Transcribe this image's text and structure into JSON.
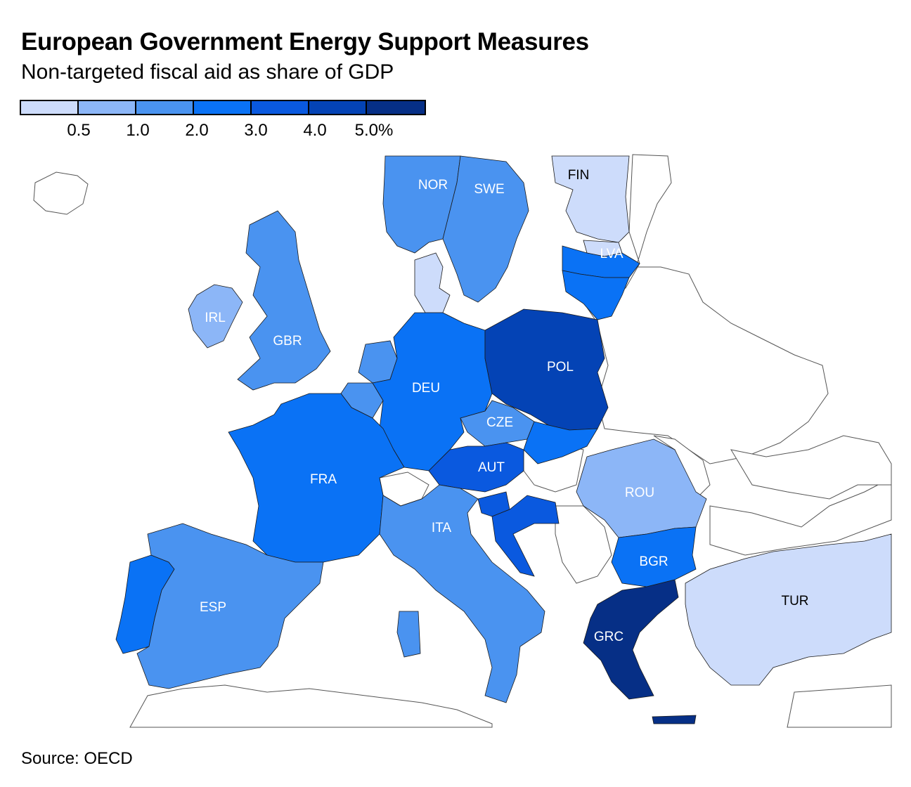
{
  "title": "European Government Energy Support Measures",
  "subtitle": "Non-targeted fiscal aid as share of GDP",
  "source": "Source: OECD",
  "legend": {
    "colors": [
      "#cddcfb",
      "#8cb6f7",
      "#4a93f0",
      "#0a72f5",
      "#0a59df",
      "#0443b5",
      "#062f86"
    ],
    "ticks": [
      "0.5",
      "1.0",
      "2.0",
      "3.0",
      "4.0",
      "5.0%"
    ]
  },
  "labels": {
    "NOR": "NOR",
    "SWE": "SWE",
    "FIN": "FIN",
    "LVA": "LVA",
    "IRL": "IRL",
    "GBR": "GBR",
    "DEU": "DEU",
    "POL": "POL",
    "CZE": "CZE",
    "FRA": "FRA",
    "AUT": "AUT",
    "ROU": "ROU",
    "ITA": "ITA",
    "BGR": "BGR",
    "ESP": "ESP",
    "TUR": "TUR",
    "GRC": "GRC"
  },
  "colors": {
    "c0": "#cddcfb",
    "c1": "#8cb6f7",
    "c2": "#4a93f0",
    "c3": "#0a72f5",
    "c4": "#0a59df",
    "c5": "#0443b5",
    "c6": "#062f86"
  }
}
